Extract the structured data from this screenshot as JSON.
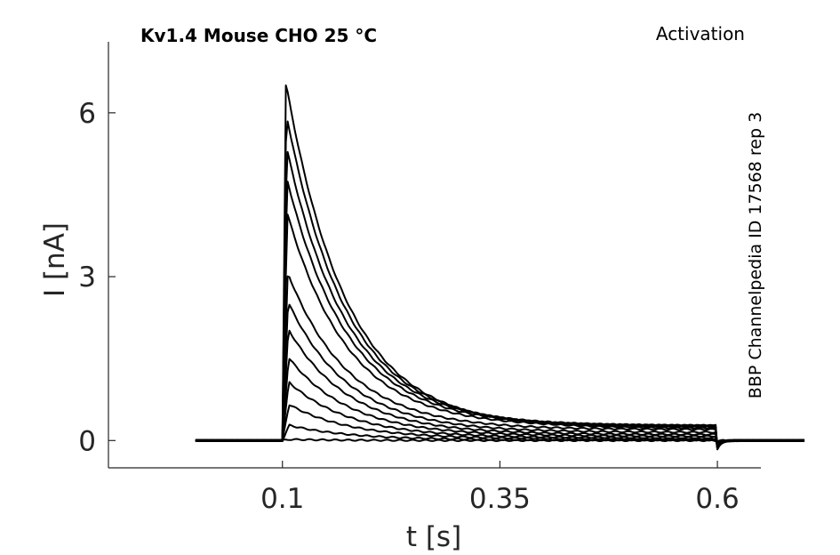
{
  "chart_data": {
    "type": "line",
    "title": "Kv1.4  Mouse  CHO  25 °C",
    "subtitle": "Activation",
    "side_label": "BBP Channelpedia ID 17568 rep 3",
    "xlabel": "t [s]",
    "ylabel": "I [nA]",
    "xlim": [
      -0.1,
      0.65
    ],
    "ylim": [
      -0.5,
      7.3
    ],
    "xticks": [
      0.1,
      0.35,
      0.6
    ],
    "xtick_labels": [
      "0.1",
      "0.35",
      "0.6"
    ],
    "yticks": [
      0,
      3,
      6
    ],
    "ytick_labels": [
      "0",
      "3",
      "6"
    ],
    "grid": false,
    "step_on": 0.1,
    "step_off": 0.6,
    "x_start": 0.0,
    "x_end": 0.7,
    "decay_tau_s": 0.07,
    "series": [
      {
        "peak": 6.55,
        "plateau": 0.22
      },
      {
        "peak": 5.98,
        "plateau": 0.25
      },
      {
        "peak": 5.37,
        "plateau": 0.27
      },
      {
        "peak": 4.8,
        "plateau": 0.27
      },
      {
        "peak": 4.17,
        "plateau": 0.25
      },
      {
        "peak": 3.07,
        "plateau": 0.2
      },
      {
        "peak": 2.54,
        "plateau": 0.15
      },
      {
        "peak": 2.04,
        "plateau": 0.11
      },
      {
        "peak": 1.52,
        "plateau": 0.08
      },
      {
        "peak": 1.07,
        "plateau": 0.05
      },
      {
        "peak": 0.66,
        "plateau": 0.03
      },
      {
        "peak": 0.28,
        "plateau": 0.01
      },
      {
        "peak": 0.02,
        "plateau": 0.0
      }
    ]
  }
}
